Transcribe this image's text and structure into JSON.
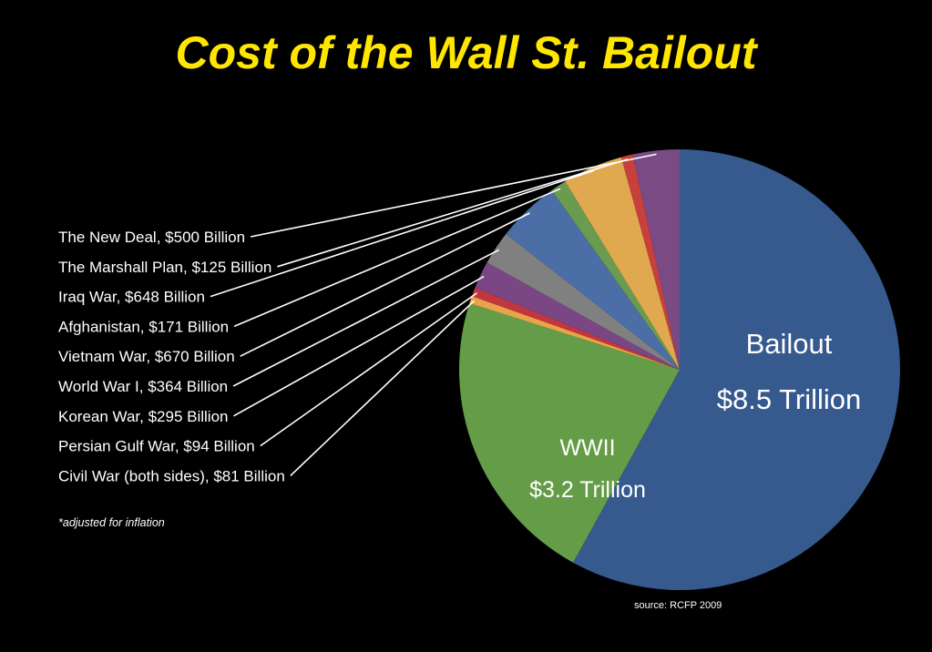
{
  "chart_data": {
    "type": "pie",
    "title": "Cost of the Wall St. Bailout",
    "unit": "$ Billion",
    "slices": [
      {
        "label": "Bailout",
        "value": 8500,
        "value_text": "$8.5 Trillion",
        "color": "#36598e"
      },
      {
        "label": "WWII",
        "value": 3200,
        "value_text": "$3.2 Trillion",
        "color": "#659c47"
      },
      {
        "label": "Civil War (both sides), $81 Billion",
        "value": 81,
        "color": "#e8a44a"
      },
      {
        "label": "Persian Gulf War, $94 Billion",
        "value": 94,
        "color": "#c3363d"
      },
      {
        "label": "Korean War, $295 Billion",
        "value": 295,
        "color": "#7a4784"
      },
      {
        "label": "World War I, $364 Billion",
        "value": 364,
        "color": "#808080"
      },
      {
        "label": "Vietnam War, $670 Billion",
        "value": 670,
        "color": "#4a6ea5"
      },
      {
        "label": "Afghanistan, $171 Billion",
        "value": 171,
        "color": "#6b9b50"
      },
      {
        "label": "Iraq War, $648 Billion",
        "value": 648,
        "color": "#e0a84f"
      },
      {
        "label": "The Marshall Plan, $125 Billion",
        "value": 125,
        "color": "#c8403c"
      },
      {
        "label": "The New Deal, $500 Billion",
        "value": 500,
        "color": "#7a4a85"
      }
    ],
    "legend_order": [
      "The New Deal, $500 Billion",
      "The Marshall Plan, $125 Billion",
      "Iraq War, $648 Billion",
      "Afghanistan, $171 Billion",
      "Vietnam War, $670 Billion",
      "World War I, $364 Billion",
      "Korean War, $295 Billion",
      "Persian Gulf War, $94 Billion",
      "Civil War (both sides), $81 Billion"
    ],
    "legend_placement": "left",
    "note": "*adjusted for inflation",
    "source": "source: RCFP 2009"
  },
  "colors": {
    "background": "#000000",
    "title": "#ffe600",
    "label_text": "#ffffff",
    "leader_line": "#ffffff"
  }
}
